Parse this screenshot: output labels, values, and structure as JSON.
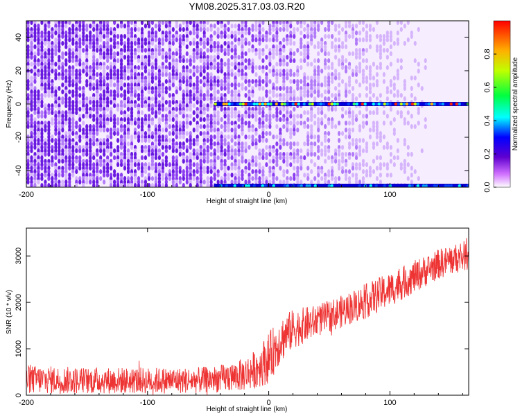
{
  "title": "YM08.2025.317.03.03.R20",
  "chart_data": [
    {
      "type": "heatmap",
      "xlabel": "Height of straight line (km)",
      "ylabel": "Frequency (Hz)",
      "xlim": [
        -200,
        165
      ],
      "ylim": [
        -50,
        50
      ],
      "xticks": [
        -200,
        -100,
        0,
        100
      ],
      "yticks": [
        -40,
        -20,
        0,
        20,
        40
      ],
      "colorbar": {
        "label": "Normalized spectral amplitude",
        "range": [
          0,
          1
        ],
        "ticks": [
          "0.0",
          "0.2",
          "0.4",
          "0.6",
          "0.8"
        ]
      },
      "features": [
        {
          "name": "carrier",
          "frequency": 0,
          "x_start": -45,
          "x_end": 165
        },
        {
          "name": "edge",
          "frequency": -50,
          "x_start": -45,
          "x_end": 165
        }
      ]
    },
    {
      "type": "line",
      "color": "#ee3333",
      "xlabel": "Height of straight line (km)",
      "ylabel": "SNR (10 * v/v)",
      "xlim": [
        -200,
        165
      ],
      "ylim": [
        0,
        3600
      ],
      "xticks": [
        -200,
        -100,
        0,
        100
      ],
      "yticks": [
        0,
        1000,
        2000,
        3000
      ],
      "envelope": {
        "x": [
          -200,
          -150,
          -100,
          -60,
          -40,
          -20,
          -10,
          0,
          10,
          20,
          40,
          60,
          80,
          100,
          120,
          140,
          165
        ],
        "lower": [
          30,
          30,
          30,
          40,
          60,
          90,
          150,
          250,
          700,
          1000,
          1250,
          1450,
          1650,
          1900,
          2200,
          2500,
          2700
        ],
        "upper": [
          650,
          600,
          600,
          600,
          650,
          800,
          1000,
          1350,
          1700,
          1850,
          1950,
          2150,
          2400,
          2650,
          2900,
          3150,
          3350
        ]
      }
    }
  ]
}
